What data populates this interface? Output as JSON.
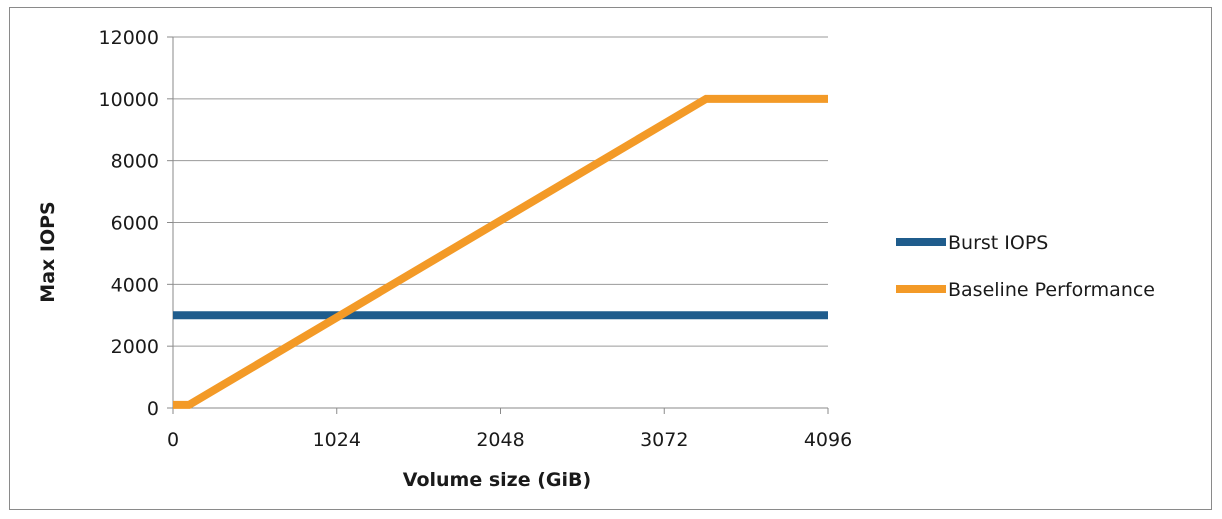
{
  "chart_data": {
    "type": "line",
    "xlabel": "Volume size (GiB)",
    "ylabel": "Max IOPS",
    "xlim": [
      0,
      4096
    ],
    "ylim": [
      0,
      12000
    ],
    "x_ticks": [
      0,
      1024,
      2048,
      3072,
      4096
    ],
    "y_ticks": [
      0,
      2000,
      4000,
      6000,
      8000,
      10000,
      12000
    ],
    "grid": "horizontal",
    "legend_position": "right",
    "series": [
      {
        "name": "Burst IOPS",
        "color": "#1f5c8c",
        "x": [
          0,
          4096
        ],
        "y": [
          3000,
          3000
        ]
      },
      {
        "name": "Baseline Performance",
        "color": "#f39a27",
        "x": [
          0,
          100,
          3334,
          4096
        ],
        "y": [
          100,
          100,
          10000,
          10000
        ]
      }
    ]
  }
}
